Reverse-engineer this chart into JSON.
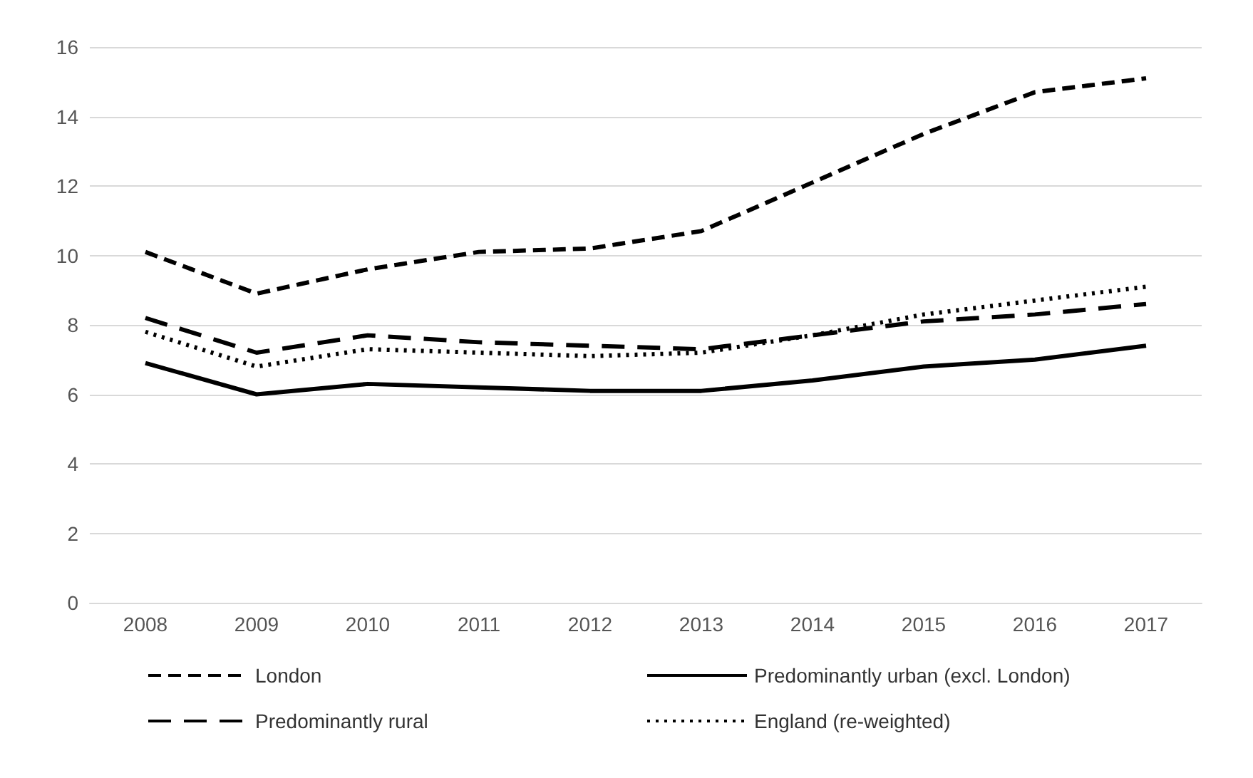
{
  "chart_data": {
    "type": "line",
    "categories": [
      "2008",
      "2009",
      "2010",
      "2011",
      "2012",
      "2013",
      "2014",
      "2015",
      "2016",
      "2017"
    ],
    "series": [
      {
        "name": "London",
        "color": "#000000",
        "line_style": "dashed",
        "values": [
          10.1,
          8.9,
          9.6,
          10.1,
          10.2,
          10.7,
          12.1,
          13.5,
          14.7,
          15.1
        ]
      },
      {
        "name": "Predominantly urban (excl. London)",
        "color": "#000000",
        "line_style": "solid",
        "values": [
          6.9,
          6.0,
          6.3,
          6.2,
          6.1,
          6.1,
          6.4,
          6.8,
          7.0,
          7.4
        ]
      },
      {
        "name": "Predominantly rural",
        "color": "#000000",
        "line_style": "dashed",
        "values": [
          8.2,
          7.2,
          7.7,
          7.5,
          7.4,
          7.3,
          7.7,
          8.1,
          8.3,
          8.6
        ]
      },
      {
        "name": "England (re-weighted)",
        "color": "#000000",
        "line_style": "dotted",
        "values": [
          7.8,
          6.8,
          7.3,
          7.2,
          7.1,
          7.2,
          7.7,
          8.3,
          8.7,
          9.1
        ]
      }
    ],
    "ylim": [
      0,
      16
    ],
    "yticks": [
      0,
      2,
      4,
      6,
      8,
      10,
      12,
      14,
      16
    ],
    "grid": "y",
    "legend": "bottom",
    "marker": "none"
  }
}
